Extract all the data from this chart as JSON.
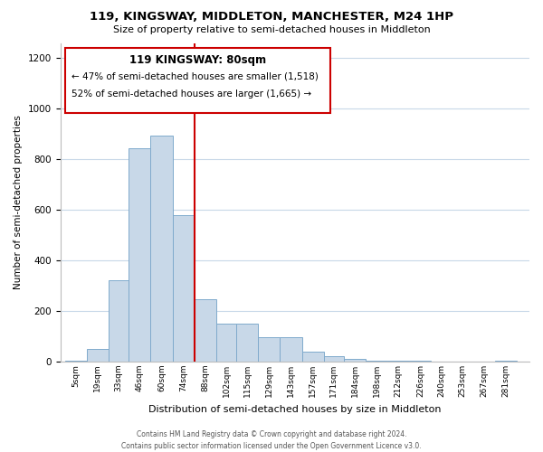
{
  "title": "119, KINGSWAY, MIDDLETON, MANCHESTER, M24 1HP",
  "subtitle": "Size of property relative to semi-detached houses in Middleton",
  "xlabel": "Distribution of semi-detached houses by size in Middleton",
  "ylabel": "Number of semi-detached properties",
  "bar_labels": [
    "5sqm",
    "19sqm",
    "33sqm",
    "46sqm",
    "60sqm",
    "74sqm",
    "88sqm",
    "102sqm",
    "115sqm",
    "129sqm",
    "143sqm",
    "157sqm",
    "171sqm",
    "184sqm",
    "198sqm",
    "212sqm",
    "226sqm",
    "240sqm",
    "253sqm",
    "267sqm",
    "281sqm"
  ],
  "bar_values": [
    5,
    50,
    320,
    845,
    895,
    580,
    245,
    150,
    150,
    95,
    95,
    38,
    20,
    12,
    5,
    3,
    2,
    1,
    1,
    1,
    2
  ],
  "bar_color": "#c8d8e8",
  "bar_edge_color": "#7faacc",
  "property_label": "119 KINGSWAY: 80sqm",
  "annotation_line1": "← 47% of semi-detached houses are smaller (1,518)",
  "annotation_line2": "52% of semi-detached houses are larger (1,665) →",
  "vline_x_idx": 5,
  "vline_color": "#cc0000",
  "box_edge_color": "#cc0000",
  "ylim": [
    0,
    1260
  ],
  "yticks": [
    0,
    200,
    400,
    600,
    800,
    1000,
    1200
  ],
  "background_color": "#ffffff",
  "grid_color": "#c8d8e8",
  "footer_line1": "Contains HM Land Registry data © Crown copyright and database right 2024.",
  "footer_line2": "Contains public sector information licensed under the Open Government Licence v3.0.",
  "bin_edges": [
    5,
    19,
    33,
    46,
    60,
    74,
    88,
    102,
    115,
    129,
    143,
    157,
    171,
    184,
    198,
    212,
    226,
    240,
    253,
    267,
    281,
    295
  ]
}
